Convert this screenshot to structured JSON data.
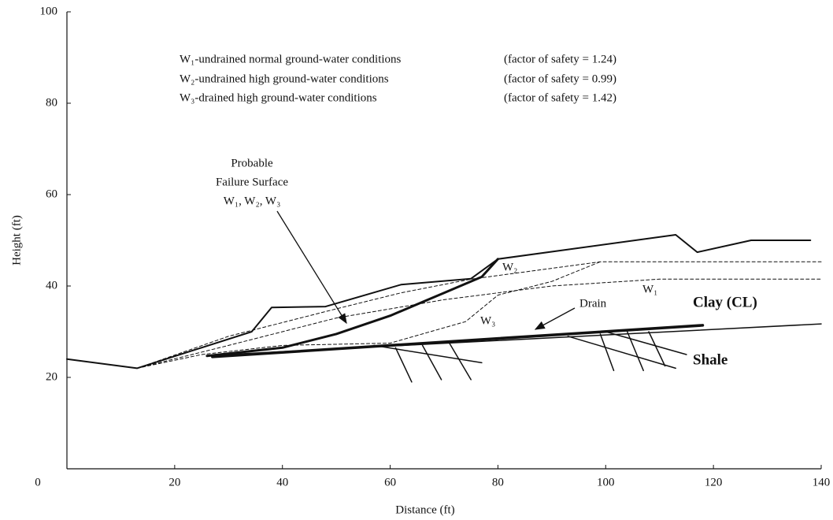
{
  "chart_data": {
    "type": "line",
    "x_label": "Distance (ft)",
    "y_label": "Height (ft)",
    "xlim": [
      0,
      140
    ],
    "ylim": [
      0,
      100
    ],
    "xticks": [
      0,
      20,
      40,
      60,
      80,
      100,
      120,
      140
    ],
    "yticks": [
      20,
      40,
      60,
      80,
      100
    ],
    "legend_text": [
      [
        "W₁-undrained normal ground-water conditions",
        "(factor of safety = 1.24)"
      ],
      [
        "W₂-undrained high ground-water conditions",
        "(factor of safety = 0.99)"
      ],
      [
        "W₃-drained high ground-water conditions",
        "(factor of safety = 1.42)"
      ]
    ],
    "annotations": {
      "failure": [
        "Probable",
        "Failure Surface",
        "W₁, W₂, W₃"
      ],
      "drain": "Drain",
      "clay": "Clay (CL)",
      "shale": "Shale"
    },
    "series": [
      {
        "color": "#111",
        "width": 2,
        "dash": "none",
        "x": [
          0,
          13,
          34.3,
          38,
          48,
          62,
          75,
          80,
          113,
          117,
          127,
          138
        ],
        "values": [
          24,
          22,
          30,
          35.3,
          35.5,
          40.3,
          41.6,
          45.9,
          51.2,
          47.4,
          50,
          50
        ]
      },
      {
        "color": "#111",
        "width": 1.5,
        "dash": "none",
        "x": [
          26,
          140
        ],
        "values": [
          24.8,
          31.7
        ]
      },
      {
        "color": "#111",
        "width": 3.5,
        "dash": "none",
        "x": [
          27,
          118
        ],
        "values": [
          24.5,
          31.4
        ]
      },
      {
        "color": "#111",
        "width": 3,
        "dash": "none",
        "x": [
          26,
          40,
          50,
          60,
          70,
          77,
          80
        ],
        "values": [
          24.7,
          26.5,
          29.5,
          33.5,
          38.5,
          42,
          45.9
        ]
      },
      {
        "name": "W₁",
        "color": "#111",
        "width": 1,
        "dash": "4 3",
        "x": [
          13,
          30,
          50,
          70,
          90,
          110,
          140
        ],
        "values": [
          22,
          27,
          33,
          37,
          40,
          41.5,
          41.5
        ]
      },
      {
        "name": "W₂",
        "color": "#111",
        "width": 1,
        "dash": "4 3",
        "x": [
          13,
          30,
          50,
          62,
          75,
          99,
          140
        ],
        "values": [
          22,
          29,
          35,
          38.5,
          41.5,
          45.3,
          45.3
        ]
      },
      {
        "name": "W₃",
        "color": "#111",
        "width": 1,
        "dash": "4 3",
        "x": [
          13,
          25,
          40,
          60,
          74,
          80,
          90,
          99
        ],
        "values": [
          22,
          25,
          27,
          27.5,
          32.2,
          38,
          41,
          45.3
        ]
      },
      {
        "color": "#111",
        "width": 1.5,
        "dash": "none",
        "x": [
          57,
          77
        ],
        "values": [
          27,
          23.2
        ]
      },
      {
        "color": "#111",
        "width": 1.5,
        "dash": "none",
        "x": [
          61,
          64
        ],
        "values": [
          26.5,
          19
        ]
      },
      {
        "color": "#111",
        "width": 1.5,
        "dash": "none",
        "x": [
          66,
          69.5
        ],
        "values": [
          27,
          19.5
        ]
      },
      {
        "color": "#111",
        "width": 1.5,
        "dash": "none",
        "x": [
          71,
          75
        ],
        "values": [
          27.5,
          19.5
        ]
      },
      {
        "color": "#111",
        "width": 1.5,
        "dash": "none",
        "x": [
          93,
          113
        ],
        "values": [
          29,
          22
        ]
      },
      {
        "color": "#111",
        "width": 1.5,
        "dash": "none",
        "x": [
          99,
          101.5
        ],
        "values": [
          29.5,
          21.5
        ]
      },
      {
        "color": "#111",
        "width": 1.5,
        "dash": "none",
        "x": [
          104,
          107
        ],
        "values": [
          30,
          21.5
        ]
      },
      {
        "color": "#111",
        "width": 1.5,
        "dash": "none",
        "x": [
          108,
          111
        ],
        "values": [
          30,
          22.5
        ]
      },
      {
        "color": "#111",
        "width": 1.5,
        "dash": "none",
        "x": [
          100,
          115
        ],
        "values": [
          30,
          25
        ]
      }
    ]
  }
}
